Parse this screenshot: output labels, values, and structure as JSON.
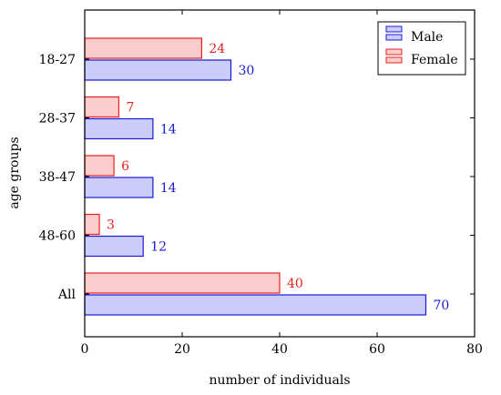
{
  "chart_data": {
    "type": "bar",
    "orientation": "horizontal",
    "categories": [
      "18-27",
      "28-37",
      "38-47",
      "48-60",
      "All"
    ],
    "series": [
      {
        "name": "Male",
        "values": [
          30,
          14,
          14,
          12,
          70
        ],
        "color": "#1a1ad8",
        "fill": "#ccccf8"
      },
      {
        "name": "Female",
        "values": [
          24,
          7,
          6,
          3,
          40
        ],
        "color": "#e52222",
        "fill": "#fbcccc"
      }
    ],
    "xlabel": "number of individuals",
    "ylabel": "age groups",
    "xlim": [
      0,
      80
    ],
    "xticks": [
      0,
      20,
      40,
      60,
      80
    ],
    "grid": false,
    "legend_position": "top-right"
  }
}
